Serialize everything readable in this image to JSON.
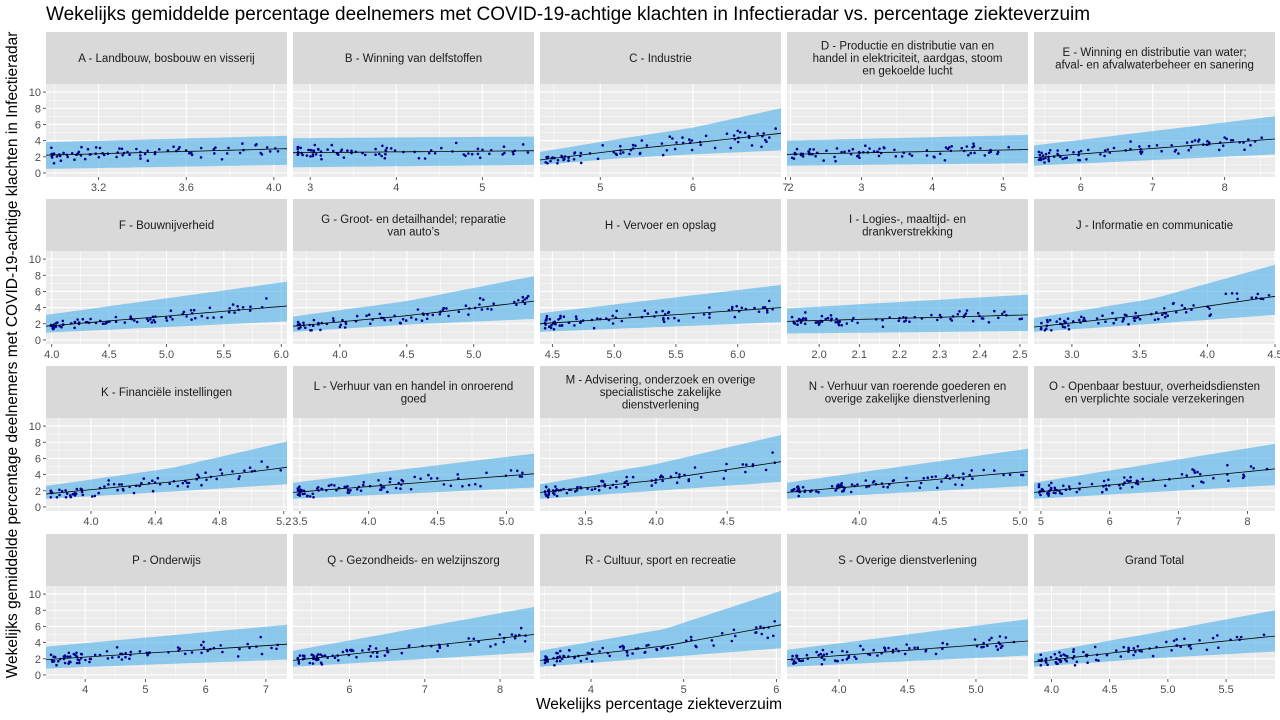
{
  "title": "Wekelijks gemiddelde percentage deelnemers met COVID-19-achtige klachten in Infectieradar vs. percentage ziekteverzuim",
  "xlabel": "Wekelijks percentage ziekteverzuim",
  "ylabel": "Wekelijks gemiddelde percentage deelnemers met COVID-19-achtige klachten in Infectieradar",
  "colors": {
    "panel_bg": "#ebebeb",
    "strip_bg": "#d9d9d9",
    "grid": "#ffffff",
    "ribbon": "#56b4e9",
    "points": "#00008b",
    "fit_line": "#000000",
    "tick_text": "#4d4d4d"
  },
  "chart_data": {
    "type": "scatter",
    "facet_layout": "4 rows x 5 columns, free x scales, shared y scale",
    "y_range": [
      -0.5,
      11
    ],
    "y_ticks": [
      0,
      2,
      4,
      6,
      8,
      10
    ],
    "grid": true,
    "fit": "trend line with prediction band",
    "panels": [
      {
        "label": [
          "A - Landbouw, bosbouw en visserij"
        ],
        "x_range": [
          2.96,
          4.06
        ],
        "x_ticks": [
          3.2,
          3.6,
          4.0
        ],
        "x_tick_labels": [
          "3.2",
          "3.6",
          "4.0"
        ],
        "n_points": 80,
        "seed": 11,
        "fit": {
          "x": [
            2.96,
            4.06
          ],
          "y": [
            2.2,
            3.0
          ]
        },
        "band": {
          "lower": [
            0.5,
            1.0
          ],
          "upper": [
            3.8,
            4.6
          ]
        }
      },
      {
        "label": [
          "B - Winning van delfstoffen"
        ],
        "x_range": [
          2.8,
          5.6
        ],
        "x_ticks": [
          3,
          4,
          5
        ],
        "x_tick_labels": [
          "3",
          "4",
          "5"
        ],
        "n_points": 80,
        "seed": 12,
        "fit": {
          "x": [
            2.8,
            5.6
          ],
          "y": [
            2.5,
            2.75
          ]
        },
        "band": {
          "lower": [
            0.7,
            1.0
          ],
          "upper": [
            4.3,
            4.5
          ]
        }
      },
      {
        "label": [
          "C - Industrie"
        ],
        "x_range": [
          4.35,
          6.95
        ],
        "x_ticks": [
          5,
          6,
          7
        ],
        "x_tick_labels": [
          "5",
          "6",
          "7"
        ],
        "n_points": 80,
        "seed": 13,
        "fit": {
          "x": [
            4.35,
            5.2,
            6.0,
            6.95
          ],
          "y": [
            1.6,
            2.8,
            3.7,
            4.9
          ]
        },
        "band": {
          "lower": [
            1.0,
            1.8,
            2.3,
            2.8
          ],
          "upper": [
            2.6,
            4.2,
            5.6,
            8.0
          ]
        }
      },
      {
        "label": [
          "D - Productie en distributie van en",
          "handel in elektriciteit, aardgas, stoom",
          "en gekoelde lucht"
        ],
        "x_range": [
          1.95,
          5.35
        ],
        "x_ticks": [
          2,
          3,
          4,
          5
        ],
        "x_tick_labels": [
          "2",
          "3",
          "4",
          "5"
        ],
        "n_points": 80,
        "seed": 14,
        "fit": {
          "x": [
            1.95,
            5.35
          ],
          "y": [
            2.3,
            2.9
          ]
        },
        "band": {
          "lower": [
            0.9,
            1.2
          ],
          "upper": [
            4.0,
            4.7
          ]
        }
      },
      {
        "label": [
          "E - Winning en distributie van water;",
          "afval- en afvalwaterbeheer en sanering"
        ],
        "x_range": [
          5.35,
          8.7
        ],
        "x_ticks": [
          6,
          7,
          8
        ],
        "x_tick_labels": [
          "6",
          "7",
          "8"
        ],
        "n_points": 80,
        "seed": 15,
        "fit": {
          "x": [
            5.35,
            8.7
          ],
          "y": [
            1.9,
            4.2
          ]
        },
        "band": {
          "lower": [
            0.9,
            2.3
          ],
          "upper": [
            3.4,
            7.0
          ]
        }
      },
      {
        "label": [
          "F - Bouwnijverheid"
        ],
        "x_range": [
          3.95,
          6.05
        ],
        "x_ticks": [
          4.0,
          4.5,
          5.0,
          5.5,
          6.0
        ],
        "x_tick_labels": [
          "4.0",
          "4.5",
          "5.0",
          "5.5",
          "6.0"
        ],
        "n_points": 80,
        "seed": 16,
        "fit": {
          "x": [
            3.95,
            6.05
          ],
          "y": [
            1.7,
            4.2
          ]
        },
        "band": {
          "lower": [
            0.9,
            2.3
          ],
          "upper": [
            3.1,
            7.2
          ]
        }
      },
      {
        "label": [
          "G - Groot- en detailhandel; reparatie",
          "van auto’s"
        ],
        "x_range": [
          3.65,
          5.45
        ],
        "x_ticks": [
          4.0,
          4.5,
          5.0
        ],
        "x_tick_labels": [
          "4.0",
          "4.5",
          "5.0"
        ],
        "n_points": 80,
        "seed": 17,
        "fit": {
          "x": [
            3.65,
            4.5,
            5.45
          ],
          "y": [
            1.7,
            3.0,
            4.8
          ]
        },
        "band": {
          "lower": [
            1.0,
            1.9,
            2.6
          ],
          "upper": [
            2.9,
            4.8,
            7.9
          ]
        }
      },
      {
        "label": [
          "H - Vervoer en opslag"
        ],
        "x_range": [
          4.4,
          6.35
        ],
        "x_ticks": [
          4.5,
          5.0,
          5.5,
          6.0
        ],
        "x_tick_labels": [
          "4.5",
          "5.0",
          "5.5",
          "6.0"
        ],
        "n_points": 80,
        "seed": 18,
        "fit": {
          "x": [
            4.4,
            6.35
          ],
          "y": [
            2.0,
            4.0
          ]
        },
        "band": {
          "lower": [
            1.0,
            2.2
          ],
          "upper": [
            3.3,
            6.8
          ]
        }
      },
      {
        "label": [
          "I - Logies-, maaltijd- en",
          "drankverstrekking"
        ],
        "x_range": [
          1.92,
          2.52
        ],
        "x_ticks": [
          2.0,
          2.1,
          2.2,
          2.3,
          2.4,
          2.5
        ],
        "x_tick_labels": [
          "2.0",
          "2.1",
          "2.2",
          "2.3",
          "2.4",
          "2.5"
        ],
        "n_points": 80,
        "seed": 19,
        "fit": {
          "x": [
            1.92,
            2.52
          ],
          "y": [
            2.3,
            3.1
          ]
        },
        "band": {
          "lower": [
            0.8,
            1.1
          ],
          "upper": [
            3.9,
            5.6
          ]
        }
      },
      {
        "label": [
          "J - Informatie en communicatie"
        ],
        "x_range": [
          2.72,
          4.5
        ],
        "x_ticks": [
          3.0,
          3.5,
          4.0,
          4.5
        ],
        "x_tick_labels": [
          "3.0",
          "3.5",
          "4.0",
          "4.5"
        ],
        "n_points": 80,
        "seed": 20,
        "fit": {
          "x": [
            2.72,
            3.6,
            4.5
          ],
          "y": [
            1.6,
            3.2,
            5.4
          ]
        },
        "band": {
          "lower": [
            1.0,
            2.0,
            3.1
          ],
          "upper": [
            2.7,
            5.1,
            9.3
          ]
        }
      },
      {
        "label": [
          "K - Financiële instellingen"
        ],
        "x_range": [
          3.72,
          5.22
        ],
        "x_ticks": [
          4.0,
          4.4,
          4.8,
          5.2
        ],
        "x_tick_labels": [
          "4.0",
          "4.4",
          "4.8",
          "5.2"
        ],
        "n_points": 80,
        "seed": 21,
        "fit": {
          "x": [
            3.72,
            4.5,
            5.22
          ],
          "y": [
            1.6,
            3.1,
            4.9
          ]
        },
        "band": {
          "lower": [
            1.0,
            1.9,
            2.8
          ],
          "upper": [
            2.6,
            4.8,
            8.1
          ]
        }
      },
      {
        "label": [
          "L - Verhuur van en handel in onroerend",
          "goed"
        ],
        "x_range": [
          3.45,
          5.2
        ],
        "x_ticks": [
          3.5,
          4.0,
          4.5,
          5.0
        ],
        "x_tick_labels": [
          "3.5",
          "4.0",
          "4.5",
          "5.0"
        ],
        "n_points": 80,
        "seed": 22,
        "fit": {
          "x": [
            3.45,
            5.2
          ],
          "y": [
            1.8,
            4.1
          ]
        },
        "band": {
          "lower": [
            1.0,
            2.4
          ],
          "upper": [
            3.0,
            6.6
          ]
        }
      },
      {
        "label": [
          "M - Advisering, onderzoek en overige",
          "specialistische zakelijke",
          "dienstverlening"
        ],
        "x_range": [
          3.18,
          4.88
        ],
        "x_ticks": [
          3.5,
          4.0,
          4.5
        ],
        "x_tick_labels": [
          "3.5",
          "4.0",
          "4.5"
        ],
        "n_points": 80,
        "seed": 23,
        "fit": {
          "x": [
            3.18,
            4.0,
            4.88
          ],
          "y": [
            1.8,
            3.3,
            5.6
          ]
        },
        "band": {
          "lower": [
            1.0,
            2.0,
            3.1
          ],
          "upper": [
            2.8,
            5.3,
            8.9
          ]
        }
      },
      {
        "label": [
          "N - Verhuur van roerende goederen en",
          "overige zakelijke dienstverlening"
        ],
        "x_range": [
          3.55,
          5.05
        ],
        "x_ticks": [
          4.0,
          4.5,
          5.0
        ],
        "x_tick_labels": [
          "4.0",
          "4.5",
          "5.0"
        ],
        "n_points": 80,
        "seed": 24,
        "fit": {
          "x": [
            3.55,
            5.05
          ],
          "y": [
            1.8,
            4.4
          ]
        },
        "band": {
          "lower": [
            1.0,
            2.6
          ],
          "upper": [
            3.0,
            7.2
          ]
        }
      },
      {
        "label": [
          "O - Openbaar bestuur, overheidsdiensten",
          "en verplichte sociale verzekeringen"
        ],
        "x_range": [
          4.9,
          8.4
        ],
        "x_ticks": [
          5,
          6,
          7,
          8
        ],
        "x_tick_labels": [
          "5",
          "6",
          "7",
          "8"
        ],
        "n_points": 80,
        "seed": 25,
        "fit": {
          "x": [
            4.9,
            8.4
          ],
          "y": [
            1.8,
            4.7
          ]
        },
        "band": {
          "lower": [
            1.0,
            2.7
          ],
          "upper": [
            3.0,
            7.8
          ]
        }
      },
      {
        "label": [
          "P - Onderwijs"
        ],
        "x_range": [
          3.35,
          7.35
        ],
        "x_ticks": [
          4,
          5,
          6,
          7
        ],
        "x_tick_labels": [
          "4",
          "5",
          "6",
          "7"
        ],
        "n_points": 80,
        "seed": 26,
        "fit": {
          "x": [
            3.35,
            7.35
          ],
          "y": [
            1.9,
            3.8
          ]
        },
        "band": {
          "lower": [
            0.8,
            1.9
          ],
          "upper": [
            3.5,
            6.2
          ]
        }
      },
      {
        "label": [
          "Q - Gezondheids- en welzijnszorg"
        ],
        "x_range": [
          5.25,
          8.45
        ],
        "x_ticks": [
          6,
          7,
          8
        ],
        "x_tick_labels": [
          "6",
          "7",
          "8"
        ],
        "n_points": 80,
        "seed": 27,
        "fit": {
          "x": [
            5.25,
            8.45
          ],
          "y": [
            1.8,
            5.0
          ]
        },
        "band": {
          "lower": [
            1.0,
            2.8
          ],
          "upper": [
            3.0,
            8.4
          ]
        }
      },
      {
        "label": [
          "R - Cultuur, sport en recreatie"
        ],
        "x_range": [
          3.45,
          6.05
        ],
        "x_ticks": [
          4,
          5,
          6
        ],
        "x_tick_labels": [
          "4",
          "5",
          "6"
        ],
        "n_points": 80,
        "seed": 28,
        "fit": {
          "x": [
            3.45,
            4.8,
            6.05
          ],
          "y": [
            1.8,
            3.6,
            6.2
          ]
        },
        "band": {
          "lower": [
            1.0,
            2.2,
            3.3
          ],
          "upper": [
            3.0,
            5.7,
            10.4
          ]
        }
      },
      {
        "label": [
          "S - Overige dienstverlening"
        ],
        "x_range": [
          3.62,
          5.38
        ],
        "x_ticks": [
          4.0,
          4.5,
          5.0
        ],
        "x_tick_labels": [
          "4.0",
          "4.5",
          "5.0"
        ],
        "n_points": 80,
        "seed": 29,
        "fit": {
          "x": [
            3.62,
            5.38
          ],
          "y": [
            1.9,
            4.2
          ]
        },
        "band": {
          "lower": [
            1.0,
            2.4
          ],
          "upper": [
            3.1,
            6.9
          ]
        }
      },
      {
        "label": [
          "Grand Total"
        ],
        "x_range": [
          3.85,
          5.92
        ],
        "x_ticks": [
          4.0,
          4.5,
          5.0,
          5.5
        ],
        "x_tick_labels": [
          "4.0",
          "4.5",
          "5.0",
          "5.5"
        ],
        "n_points": 80,
        "seed": 30,
        "fit": {
          "x": [
            3.85,
            4.8,
            5.92
          ],
          "y": [
            1.6,
            3.2,
            4.8
          ]
        },
        "band": {
          "lower": [
            1.0,
            2.0,
            2.9
          ],
          "upper": [
            2.6,
            5.0,
            8.0
          ]
        }
      }
    ]
  }
}
